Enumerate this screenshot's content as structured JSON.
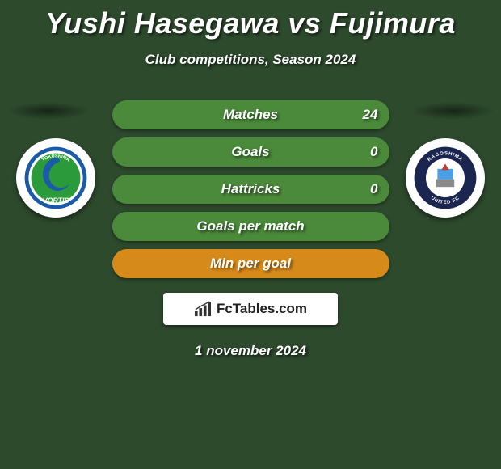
{
  "title": "Yushi Hasegawa vs Fujimura",
  "subtitle": "Club competitions, Season 2024",
  "date": "1 november 2024",
  "brand": "FcTables.com",
  "colors": {
    "background": "#2d4a2d",
    "bar_green": "#4a8a3a",
    "bar_orange": "#d68a1a",
    "text": "#ffffff"
  },
  "fonts": {
    "title_size": 36,
    "subtitle_size": 17,
    "bar_label_size": 17
  },
  "bars": [
    {
      "label": "Matches",
      "left_val": "",
      "right_val": "24",
      "left_pct": 0,
      "right_pct": 100,
      "left_color": "#4a8a3a",
      "right_color": "#4a8a3a"
    },
    {
      "label": "Goals",
      "left_val": "",
      "right_val": "0",
      "left_pct": 0,
      "right_pct": 100,
      "left_color": "#4a8a3a",
      "right_color": "#4a8a3a"
    },
    {
      "label": "Hattricks",
      "left_val": "",
      "right_val": "0",
      "left_pct": 0,
      "right_pct": 100,
      "left_color": "#4a8a3a",
      "right_color": "#4a8a3a"
    },
    {
      "label": "Goals per match",
      "left_val": "",
      "right_val": "",
      "left_pct": 0,
      "right_pct": 100,
      "left_color": "#4a8a3a",
      "right_color": "#4a8a3a"
    },
    {
      "label": "Min per goal",
      "left_val": "",
      "right_val": "",
      "left_pct": 100,
      "right_pct": 0,
      "left_color": "#d68a1a",
      "right_color": "#d68a1a"
    }
  ],
  "clubs": {
    "left": {
      "name": "Tokushima Vortis",
      "badge_colors": {
        "outer": "#1a5aa8",
        "ring": "#2a9a3a",
        "swirl": "#1a5aa8",
        "text": "#ffffff"
      }
    },
    "right": {
      "name": "Kagoshima United FC",
      "badge_colors": {
        "outer": "#1a2550",
        "circle": "#ffffff",
        "accent": "#4aa0e8",
        "text": "#1a2550"
      }
    }
  }
}
